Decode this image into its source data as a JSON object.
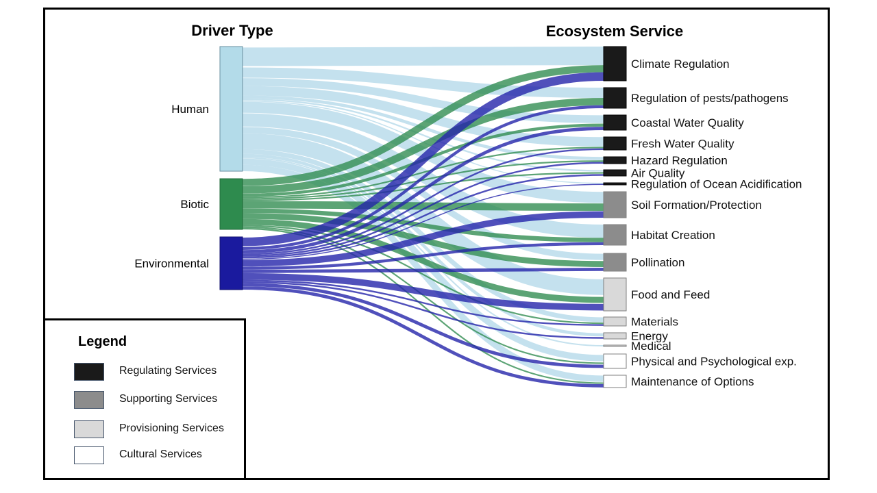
{
  "headers": {
    "driver": "Driver Type",
    "service": "Ecosystem Service"
  },
  "sources": [
    {
      "label": "Human",
      "color": "#b3dbe9"
    },
    {
      "label": "Biotic",
      "color": "#2e8b4e"
    },
    {
      "label": "Environmental",
      "color": "#1a1a9e"
    }
  ],
  "targets": [
    {
      "label": "Climate Regulation",
      "category": "regulating"
    },
    {
      "label": "Regulation of pests/pathogens",
      "category": "regulating"
    },
    {
      "label": "Coastal Water Quality",
      "category": "regulating"
    },
    {
      "label": "Fresh Water Quality",
      "category": "regulating"
    },
    {
      "label": "Hazard Regulation",
      "category": "regulating"
    },
    {
      "label": "Air Quality",
      "category": "regulating"
    },
    {
      "label": "Regulation of Ocean Acidification",
      "category": "regulating"
    },
    {
      "label": "Soil Formation/Protection",
      "category": "supporting"
    },
    {
      "label": "Habitat Creation",
      "category": "supporting"
    },
    {
      "label": "Pollination",
      "category": "supporting"
    },
    {
      "label": "Food and Feed",
      "category": "provisioning"
    },
    {
      "label": "Materials",
      "category": "provisioning"
    },
    {
      "label": "Energy",
      "category": "provisioning"
    },
    {
      "label": "Medical",
      "category": "provisioning"
    },
    {
      "label": "Physical and Psychological exp.",
      "category": "cultural"
    },
    {
      "label": "Maintenance of Options",
      "category": "cultural"
    }
  ],
  "category_colors": {
    "regulating": "#1a1a1a",
    "supporting": "#8c8c8c",
    "provisioning": "#d9d9d9",
    "cultural": "#ffffff"
  },
  "flows": [
    {
      "source": "Human",
      "target": "Climate Regulation",
      "value": 13
    },
    {
      "source": "Human",
      "target": "Regulation of pests/pathogens",
      "value": 7
    },
    {
      "source": "Human",
      "target": "Coastal Water Quality",
      "value": 5
    },
    {
      "source": "Human",
      "target": "Fresh Water Quality",
      "value": 6
    },
    {
      "source": "Human",
      "target": "Hazard Regulation",
      "value": 2
    },
    {
      "source": "Human",
      "target": "Air Quality",
      "value": 1
    },
    {
      "source": "Human",
      "target": "Regulation of Ocean Acidification",
      "value": 1
    },
    {
      "source": "Human",
      "target": "Soil Formation/Protection",
      "value": 7
    },
    {
      "source": "Human",
      "target": "Habitat Creation",
      "value": 9
    },
    {
      "source": "Human",
      "target": "Pollination",
      "value": 4
    },
    {
      "source": "Human",
      "target": "Food and Feed",
      "value": 10
    },
    {
      "source": "Human",
      "target": "Materials",
      "value": 3
    },
    {
      "source": "Human",
      "target": "Energy",
      "value": 2
    },
    {
      "source": "Human",
      "target": "Medical",
      "value": 1
    },
    {
      "source": "Human",
      "target": "Physical and Psychological exp.",
      "value": 4
    },
    {
      "source": "Human",
      "target": "Maintenance of Options",
      "value": 4
    },
    {
      "source": "Biotic",
      "target": "Climate Regulation",
      "value": 5
    },
    {
      "source": "Biotic",
      "target": "Regulation of pests/pathogens",
      "value": 5
    },
    {
      "source": "Biotic",
      "target": "Coastal Water Quality",
      "value": 2
    },
    {
      "source": "Biotic",
      "target": "Fresh Water Quality",
      "value": 1
    },
    {
      "source": "Biotic",
      "target": "Hazard Regulation",
      "value": 1
    },
    {
      "source": "Biotic",
      "target": "Air Quality",
      "value": 1
    },
    {
      "source": "Biotic",
      "target": "Soil Formation/Protection",
      "value": 5
    },
    {
      "source": "Biotic",
      "target": "Habitat Creation",
      "value": 3
    },
    {
      "source": "Biotic",
      "target": "Pollination",
      "value": 4
    },
    {
      "source": "Biotic",
      "target": "Food and Feed",
      "value": 4
    },
    {
      "source": "Biotic",
      "target": "Materials",
      "value": 1
    },
    {
      "source": "Biotic",
      "target": "Physical and Psychological exp.",
      "value": 1
    },
    {
      "source": "Biotic",
      "target": "Maintenance of Options",
      "value": 1
    },
    {
      "source": "Environmental",
      "target": "Climate Regulation",
      "value": 6
    },
    {
      "source": "Environmental",
      "target": "Regulation of pests/pathogens",
      "value": 2
    },
    {
      "source": "Environmental",
      "target": "Coastal Water Quality",
      "value": 2
    },
    {
      "source": "Environmental",
      "target": "Fresh Water Quality",
      "value": 1
    },
    {
      "source": "Environmental",
      "target": "Hazard Regulation",
      "value": 1
    },
    {
      "source": "Environmental",
      "target": "Air Quality",
      "value": 1
    },
    {
      "source": "Environmental",
      "target": "Regulation of Ocean Acidification",
      "value": 1
    },
    {
      "source": "Environmental",
      "target": "Soil Formation/Protection",
      "value": 4
    },
    {
      "source": "Environmental",
      "target": "Habitat Creation",
      "value": 2
    },
    {
      "source": "Environmental",
      "target": "Pollination",
      "value": 2
    },
    {
      "source": "Environmental",
      "target": "Food and Feed",
      "value": 4
    },
    {
      "source": "Environmental",
      "target": "Materials",
      "value": 1
    },
    {
      "source": "Environmental",
      "target": "Energy",
      "value": 1
    },
    {
      "source": "Environmental",
      "target": "Physical and Psychological exp.",
      "value": 2
    },
    {
      "source": "Environmental",
      "target": "Maintenance of Options",
      "value": 2
    }
  ],
  "legend": {
    "title": "Legend",
    "items": [
      {
        "label": "Regulating Services",
        "color": "#1a1a1a"
      },
      {
        "label": "Supporting Services",
        "color": "#8c8c8c"
      },
      {
        "label": "Provisioning Services",
        "color": "#d9d9d9"
      },
      {
        "label": "Cultural Services",
        "color": "#ffffff"
      }
    ]
  }
}
